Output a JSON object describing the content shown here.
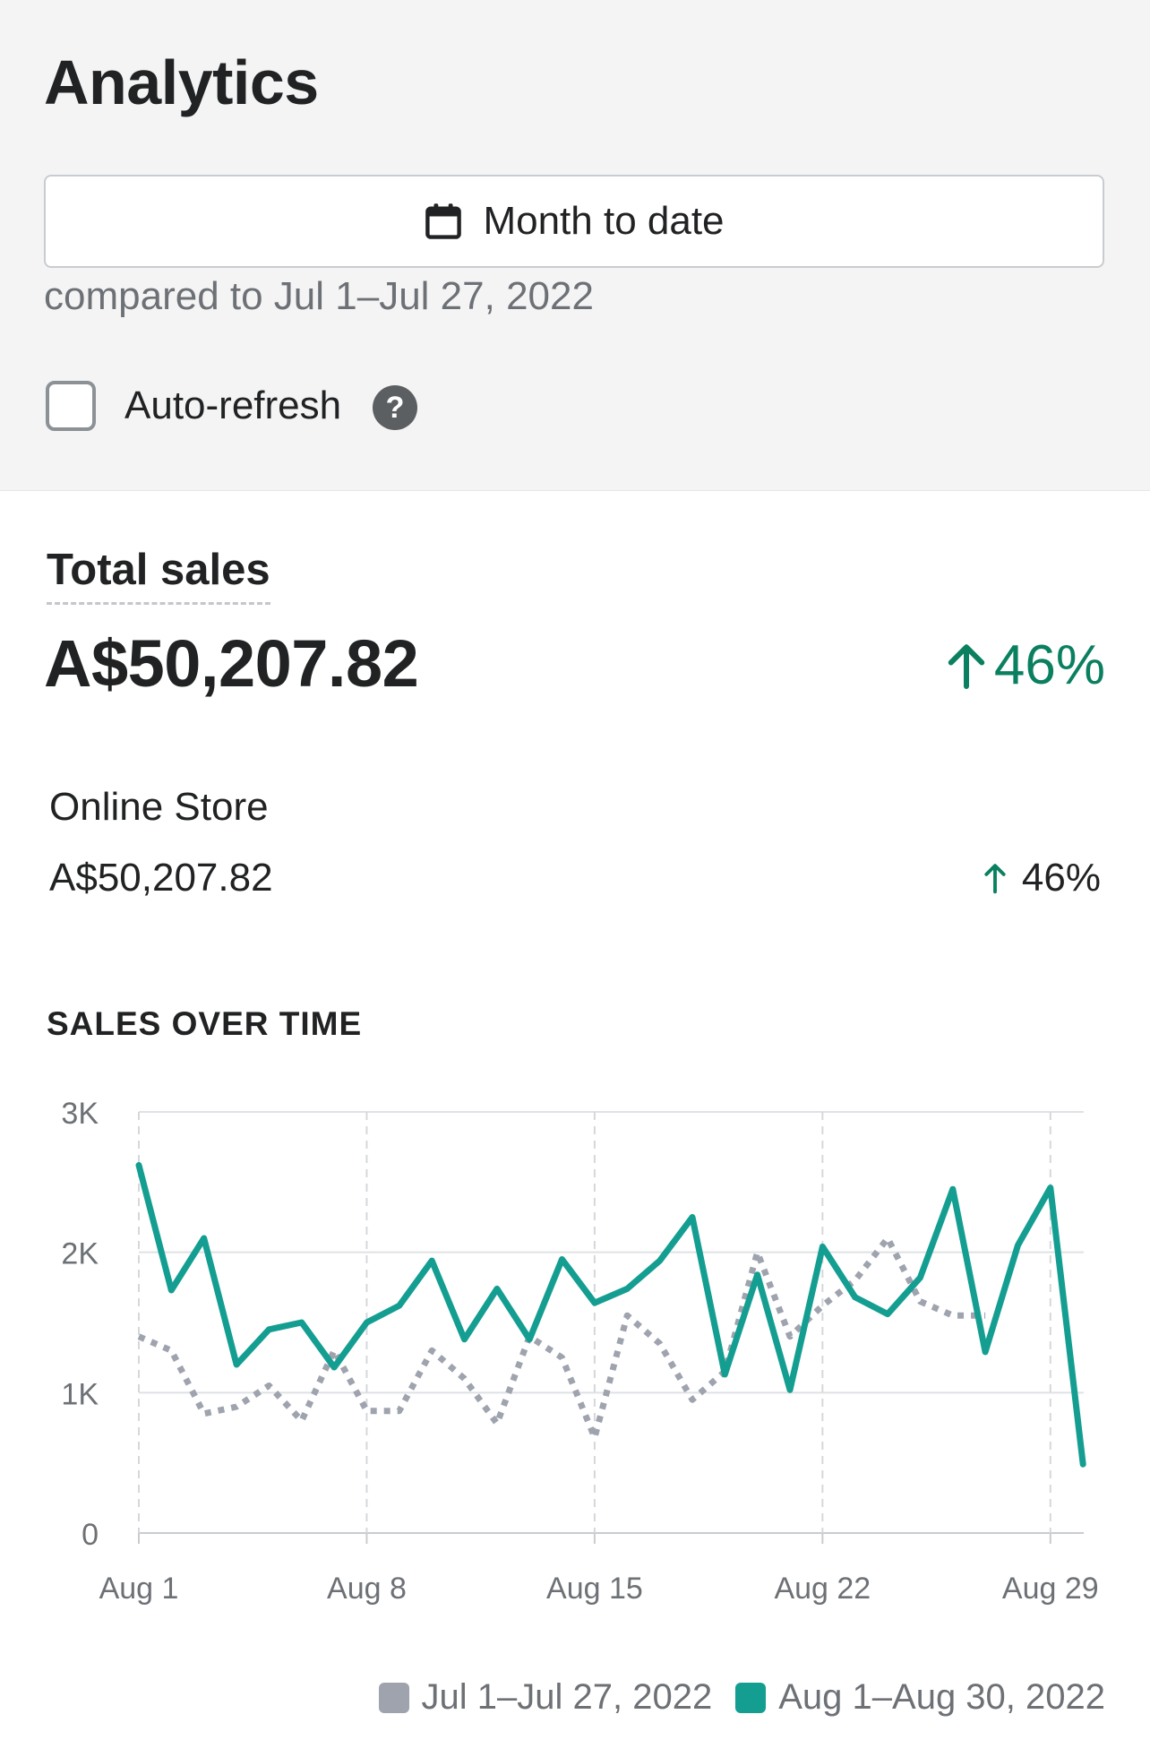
{
  "header": {
    "title": "Analytics",
    "date_button_label": "Month to date",
    "compare_text": "compared to Jul 1–Jul 27, 2022",
    "auto_refresh_label": "Auto-refresh",
    "help_glyph": "?"
  },
  "summary": {
    "label": "Total sales",
    "value": "A$50,207.82",
    "change": "46%"
  },
  "channels": [
    {
      "name": "Online Store",
      "value": "A$50,207.82",
      "change": "46%"
    }
  ],
  "colors": {
    "accent_green": "#0a8060",
    "current_series": "#149e91",
    "previous_series": "#9ea3ad"
  },
  "chart_data": {
    "type": "line",
    "title": "SALES OVER TIME",
    "ylim": [
      0,
      3000
    ],
    "yticks": [
      {
        "value": 0,
        "label": "0"
      },
      {
        "value": 1000,
        "label": "1K"
      },
      {
        "value": 2000,
        "label": "2K"
      },
      {
        "value": 3000,
        "label": "3K"
      }
    ],
    "xticks": [
      {
        "day": 1,
        "label": "Aug 1"
      },
      {
        "day": 8,
        "label": "Aug 8"
      },
      {
        "day": 15,
        "label": "Aug 15"
      },
      {
        "day": 22,
        "label": "Aug 22"
      },
      {
        "day": 29,
        "label": "Aug 29"
      }
    ],
    "grid": true,
    "legend": "bottom-right",
    "series": [
      {
        "name": "Jul 1–Jul 27, 2022",
        "style": "dotted",
        "color": "#9ea3ad",
        "x": [
          1,
          2,
          3,
          4,
          5,
          6,
          7,
          8,
          9,
          10,
          11,
          12,
          13,
          14,
          15,
          16,
          17,
          18,
          19,
          20,
          21,
          22,
          23,
          24,
          25,
          26,
          27
        ],
        "values": [
          1400,
          1300,
          850,
          900,
          1050,
          800,
          1300,
          870,
          870,
          1300,
          1100,
          780,
          1400,
          1250,
          680,
          1550,
          1350,
          950,
          1150,
          2000,
          1400,
          1620,
          1800,
          2100,
          1650,
          1550,
          1550
        ]
      },
      {
        "name": "Aug 1–Aug 30, 2022",
        "style": "solid",
        "color": "#149e91",
        "x": [
          1,
          2,
          3,
          4,
          5,
          6,
          7,
          8,
          9,
          10,
          11,
          12,
          13,
          14,
          15,
          16,
          17,
          18,
          19,
          20,
          21,
          22,
          23,
          24,
          25,
          26,
          27,
          28,
          29,
          30
        ],
        "values": [
          2620,
          1730,
          2100,
          1200,
          1450,
          1500,
          1180,
          1500,
          1620,
          1940,
          1380,
          1740,
          1380,
          1950,
          1640,
          1740,
          1940,
          2250,
          1130,
          1840,
          1020,
          2040,
          1680,
          1560,
          1820,
          2450,
          1290,
          2050,
          2460,
          490
        ]
      }
    ]
  }
}
